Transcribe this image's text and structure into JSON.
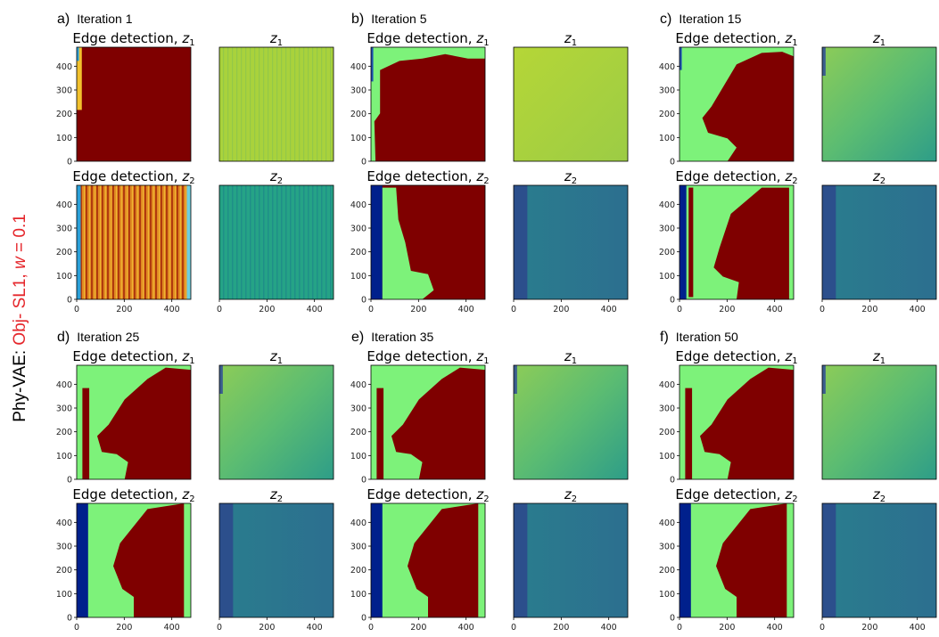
{
  "figure": {
    "ylabel": {
      "prefix": "Phy-VAE: ",
      "highlight": "Obj- SL1, ",
      "w_var": "w",
      "w_eq": " = 0.1"
    },
    "colors": {
      "label_text": "#000000",
      "highlight": "#e5262b",
      "red_region": "#7f0000",
      "green_region": "#7df27a",
      "dark_blue": "#00208c",
      "yellow": "#f0c020",
      "orange": "#e07020",
      "viridis_yellowgreen": "#a7d13c",
      "viridis_green": "#7fc862",
      "viridis_teal": "#2f9e8a",
      "viridis_blue": "#2f6a8e"
    }
  },
  "chart_data": [
    {
      "type": "heatmap",
      "group": "a)",
      "iteration": "Iteration 1",
      "panels": [
        {
          "title": "Edge detection, ",
          "sub": "1",
          "content": "edge",
          "pattern": "it1_z1"
        },
        {
          "title": "",
          "sub": "1",
          "content": "latent",
          "pattern": "it1_l1"
        },
        {
          "title": "Edge detection, ",
          "sub": "2",
          "content": "edge",
          "pattern": "it1_z2"
        },
        {
          "title": "",
          "sub": "2",
          "content": "latent",
          "pattern": "it1_l2"
        }
      ],
      "yticks": [
        0,
        100,
        200,
        300,
        400
      ],
      "xticks": [
        0,
        200,
        400
      ],
      "xlim": [
        0,
        480
      ],
      "ylim": [
        0,
        480
      ]
    },
    {
      "type": "heatmap",
      "group": "b)",
      "iteration": "Iteration 5",
      "panels": [
        {
          "title": "Edge detection, ",
          "sub": "1",
          "content": "edge",
          "pattern": "it5_z1"
        },
        {
          "title": "",
          "sub": "1",
          "content": "latent",
          "pattern": "it5_l1"
        },
        {
          "title": "Edge detection, ",
          "sub": "2",
          "content": "edge",
          "pattern": "it5_z2"
        },
        {
          "title": "",
          "sub": "2",
          "content": "latent",
          "pattern": "late_l2"
        }
      ],
      "yticks": [
        0,
        100,
        200,
        300,
        400
      ],
      "xticks": [
        0,
        200,
        400
      ],
      "xlim": [
        0,
        480
      ],
      "ylim": [
        0,
        480
      ]
    },
    {
      "type": "heatmap",
      "group": "c)",
      "iteration": "Iteration 15",
      "panels": [
        {
          "title": "Edge detection, ",
          "sub": "1",
          "content": "edge",
          "pattern": "late_z1"
        },
        {
          "title": "",
          "sub": "1",
          "content": "latent",
          "pattern": "late_l1"
        },
        {
          "title": "Edge detection, ",
          "sub": "2",
          "content": "edge",
          "pattern": "late_z2"
        },
        {
          "title": "",
          "sub": "2",
          "content": "latent",
          "pattern": "late_l2"
        }
      ],
      "yticks": [
        0,
        100,
        200,
        300,
        400
      ],
      "xticks": [
        0,
        200,
        400
      ],
      "xlim": [
        0,
        480
      ],
      "ylim": [
        0,
        480
      ]
    },
    {
      "type": "heatmap",
      "group": "d)",
      "iteration": "Iteration 25",
      "panels": [
        {
          "title": "Edge detection, ",
          "sub": "1",
          "content": "edge",
          "pattern": "final_z1"
        },
        {
          "title": "",
          "sub": "1",
          "content": "latent",
          "pattern": "late_l1"
        },
        {
          "title": "Edge detection, ",
          "sub": "2",
          "content": "edge",
          "pattern": "final_z2"
        },
        {
          "title": "",
          "sub": "2",
          "content": "latent",
          "pattern": "late_l2"
        }
      ],
      "yticks": [
        0,
        100,
        200,
        300,
        400
      ],
      "xticks": [
        0,
        200,
        400
      ],
      "xlim": [
        0,
        480
      ],
      "ylim": [
        0,
        480
      ]
    },
    {
      "type": "heatmap",
      "group": "e)",
      "iteration": "Iteration 35",
      "panels": [
        {
          "title": "Edge detection, ",
          "sub": "1",
          "content": "edge",
          "pattern": "final_z1"
        },
        {
          "title": "",
          "sub": "1",
          "content": "latent",
          "pattern": "late_l1"
        },
        {
          "title": "Edge detection, ",
          "sub": "2",
          "content": "edge",
          "pattern": "final_z2"
        },
        {
          "title": "",
          "sub": "2",
          "content": "latent",
          "pattern": "late_l2"
        }
      ],
      "yticks": [
        0,
        100,
        200,
        300,
        400
      ],
      "xticks": [
        0,
        200,
        400
      ],
      "xlim": [
        0,
        480
      ],
      "ylim": [
        0,
        480
      ]
    },
    {
      "type": "heatmap",
      "group": "f)",
      "iteration": "Iteration 50",
      "panels": [
        {
          "title": "Edge detection, ",
          "sub": "1",
          "content": "edge",
          "pattern": "final_z1"
        },
        {
          "title": "",
          "sub": "1",
          "content": "latent",
          "pattern": "late_l1"
        },
        {
          "title": "Edge detection, ",
          "sub": "2",
          "content": "edge",
          "pattern": "final_z2"
        },
        {
          "title": "",
          "sub": "2",
          "content": "latent",
          "pattern": "late_l2"
        }
      ],
      "yticks": [
        0,
        100,
        200,
        300,
        400
      ],
      "xticks": [
        0,
        200,
        400
      ],
      "xlim": [
        0,
        480
      ],
      "ylim": [
        0,
        480
      ]
    }
  ]
}
